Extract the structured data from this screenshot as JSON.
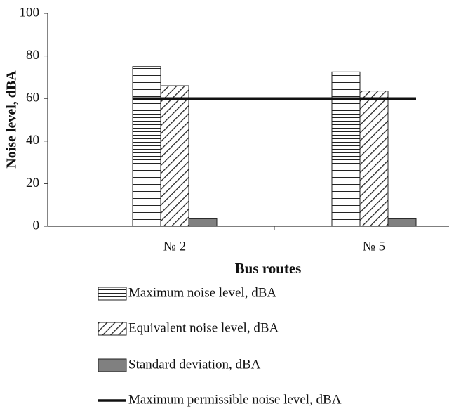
{
  "chart_data": {
    "type": "bar",
    "ylabel": "Noise level, dBA",
    "xlabel": "Bus routes",
    "categories": [
      "№ 2",
      "№ 5"
    ],
    "series": [
      {
        "name": "Maximum noise level, dBA",
        "color": "#222222",
        "pattern": "horizontal",
        "values": [
          75,
          72.5
        ]
      },
      {
        "name": "Equivalent noise level, dBA",
        "color": "#222222",
        "pattern": "diagonal",
        "values": [
          66,
          63.5
        ]
      },
      {
        "name": "Standard deviation, dBA",
        "color": "#808080",
        "pattern": "solid",
        "values": [
          3.5,
          3.5
        ]
      },
      {
        "name": "Maximum permissible noise level, dBA",
        "color": "#111111",
        "type": "line",
        "values": [
          60,
          60
        ]
      }
    ],
    "ylim": [
      0,
      100
    ],
    "yticks": [
      0,
      20,
      40,
      60,
      80,
      100
    ],
    "grid": false,
    "legend": "bottom"
  }
}
